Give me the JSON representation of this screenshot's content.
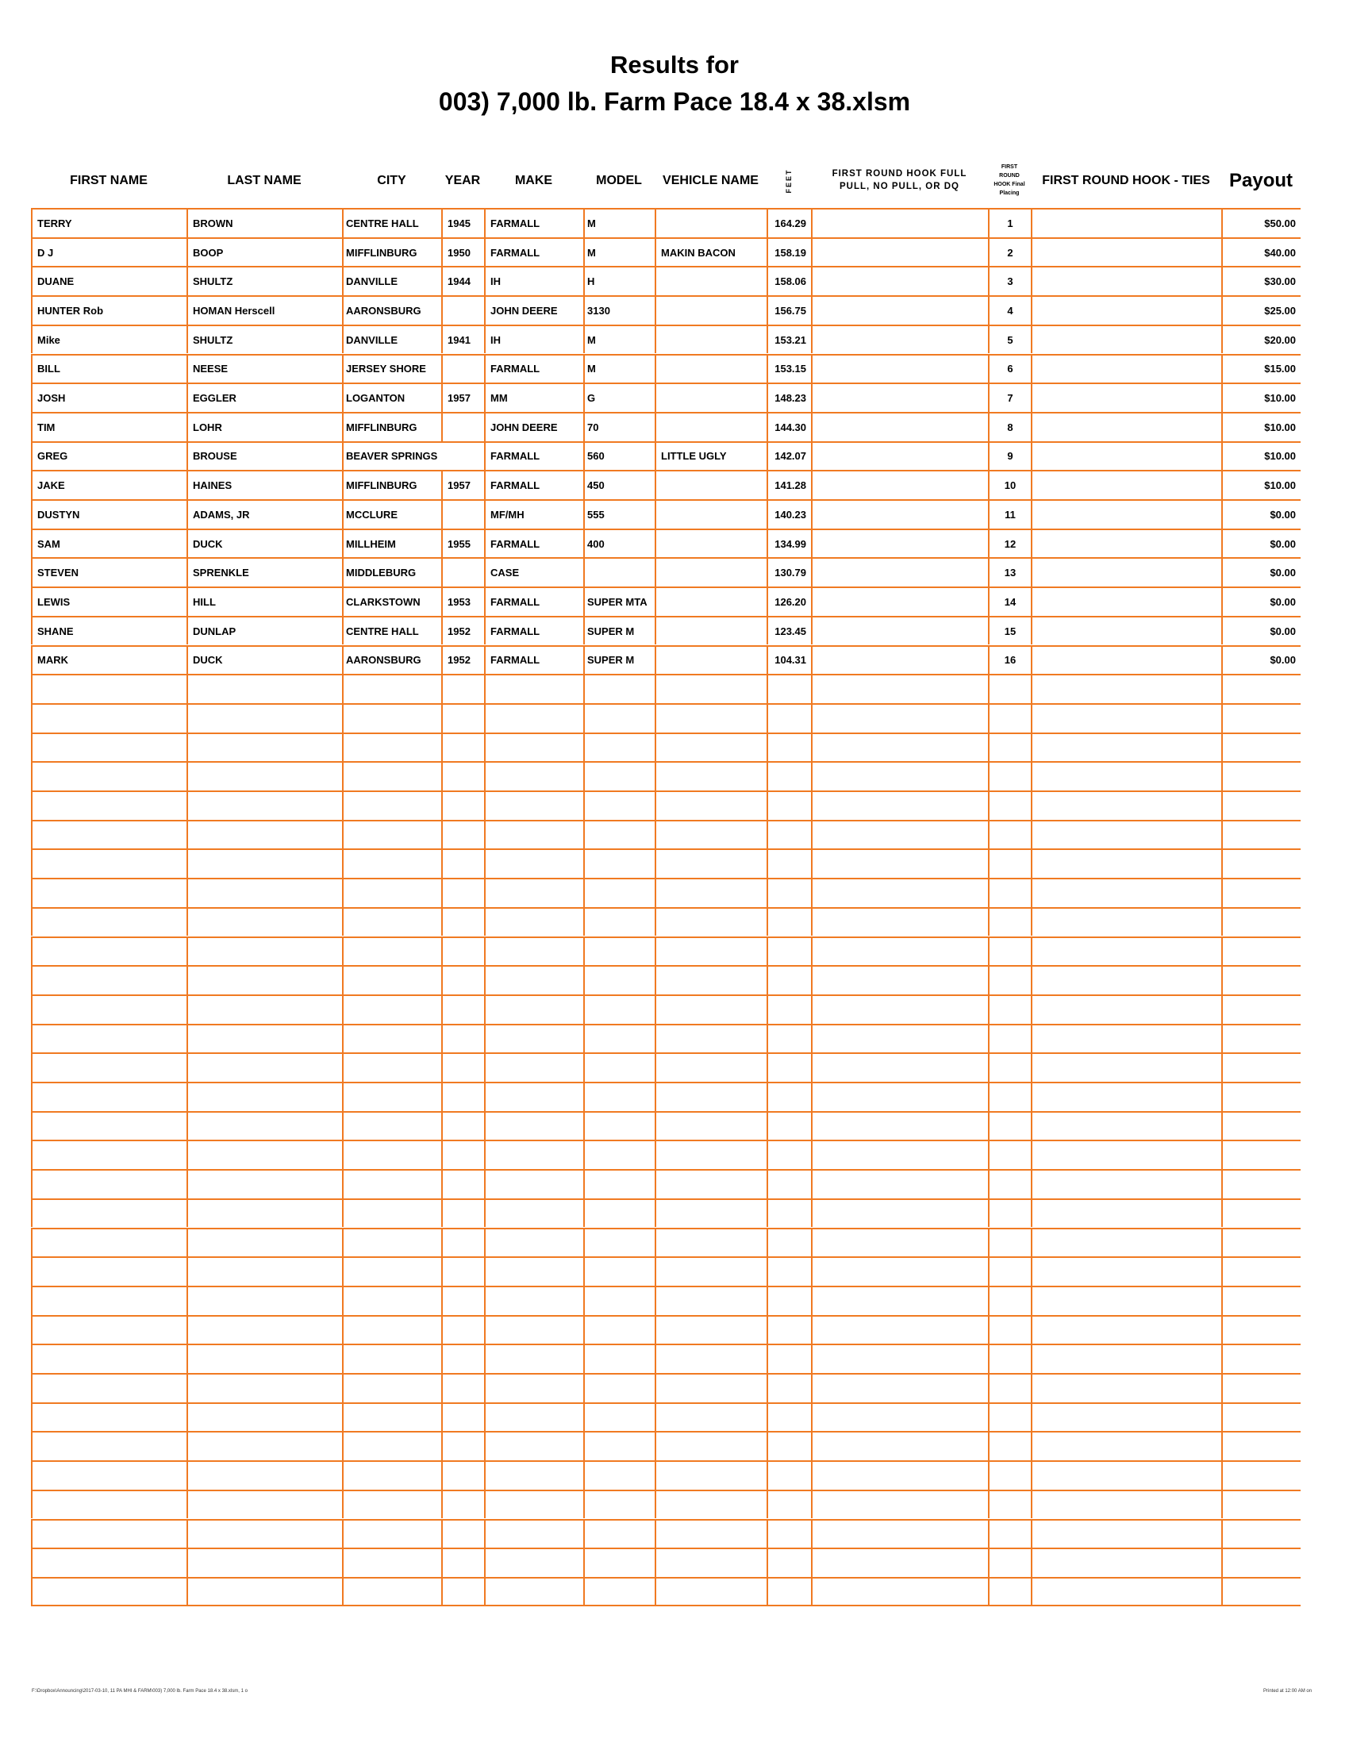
{
  "title": {
    "line1": "Results for",
    "line2": "003) 7,000 lb. Farm Pace  18.4 x 38.xlsm"
  },
  "columns": {
    "first_name": "FIRST NAME",
    "last_name": "LAST NAME",
    "city": "CITY",
    "year": "YEAR",
    "make": "MAKE",
    "model": "MODEL",
    "vehicle_name": "VEHICLE NAME",
    "feet": "FEET",
    "hook_status": "FIRST ROUND HOOK FULL PULL, NO PULL, OR DQ",
    "placing": "FIRST ROUND HOOK Final Placing",
    "ties": "FIRST ROUND HOOK - TIES",
    "payout": "Payout"
  },
  "rows": [
    [
      "TERRY",
      "BROWN",
      "CENTRE HALL",
      "1945",
      "FARMALL",
      "M",
      "",
      "164.29",
      "",
      "1",
      "",
      "$50.00"
    ],
    [
      "D J",
      "BOOP",
      "MIFFLINBURG",
      "1950",
      "FARMALL",
      "M",
      "MAKIN BACON",
      "158.19",
      "",
      "2",
      "",
      "$40.00"
    ],
    [
      "DUANE",
      "SHULTZ",
      "DANVILLE",
      "1944",
      "IH",
      "H",
      "",
      "158.06",
      "",
      "3",
      "",
      "$30.00"
    ],
    [
      "HUNTER Rob",
      "HOMAN Herscell",
      "AARONSBURG",
      "",
      "JOHN DEERE",
      "3130",
      "",
      "156.75",
      "",
      "4",
      "",
      "$25.00"
    ],
    [
      "Mike",
      "SHULTZ",
      "DANVILLE",
      "1941",
      "IH",
      "M",
      "",
      "153.21",
      "",
      "5",
      "",
      "$20.00"
    ],
    [
      "BILL",
      "NEESE",
      "JERSEY SHORE",
      "",
      "FARMALL",
      "M",
      "",
      "153.15",
      "",
      "6",
      "",
      "$15.00"
    ],
    [
      "JOSH",
      "EGGLER",
      "LOGANTON",
      "1957",
      "MM",
      "G",
      "",
      "148.23",
      "",
      "7",
      "",
      "$10.00"
    ],
    [
      "TIM",
      "LOHR",
      "MIFFLINBURG",
      "",
      "JOHN DEERE",
      "70",
      "",
      "144.30",
      "",
      "8",
      "",
      "$10.00"
    ],
    [
      "GREG",
      "BROUSE",
      "BEAVER SPRINGS",
      "",
      "FARMALL",
      "560",
      "LITTLE UGLY",
      "142.07",
      "",
      "9",
      "",
      "$10.00"
    ],
    [
      "JAKE",
      "HAINES",
      "MIFFLINBURG",
      "1957",
      "FARMALL",
      "450",
      "",
      "141.28",
      "",
      "10",
      "",
      "$10.00"
    ],
    [
      "DUSTYN",
      "ADAMS, JR",
      "MCCLURE",
      "",
      "MF/MH",
      "555",
      "",
      "140.23",
      "",
      "11",
      "",
      "$0.00"
    ],
    [
      "SAM",
      "DUCK",
      "MILLHEIM",
      "1955",
      "FARMALL",
      "400",
      "",
      "134.99",
      "",
      "12",
      "",
      "$0.00"
    ],
    [
      "STEVEN",
      "SPRENKLE",
      "MIDDLEBURG",
      "",
      "CASE",
      "",
      "",
      "130.79",
      "",
      "13",
      "",
      "$0.00"
    ],
    [
      "LEWIS",
      "HILL",
      "CLARKSTOWN",
      "1953",
      "FARMALL",
      "SUPER MTA",
      "",
      "126.20",
      "",
      "14",
      "",
      "$0.00"
    ],
    [
      "SHANE",
      "DUNLAP",
      "CENTRE HALL",
      "1952",
      "FARMALL",
      "SUPER M",
      "",
      "123.45",
      "",
      "15",
      "",
      "$0.00"
    ],
    [
      "MARK",
      "DUCK",
      "AARONSBURG",
      "1952",
      "FARMALL",
      "SUPER M",
      "",
      "104.31",
      "",
      "16",
      "",
      "$0.00"
    ]
  ],
  "footer": {
    "path": "F:\\Dropbox\\Announcing\\2017-03-10, 11 PA MHI & FARM\\003) 7,000 lb. Farm Pace 18.4 x 38.xlsm, 1 o",
    "printed": "Printed at 12:00 AM on"
  },
  "colors": {
    "grid": "#f07a22"
  }
}
